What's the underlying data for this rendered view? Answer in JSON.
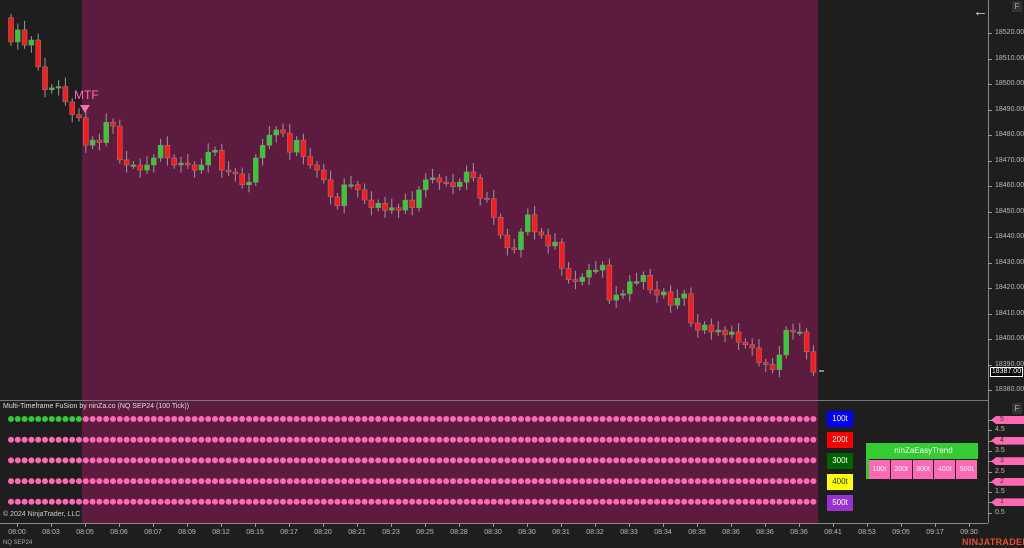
{
  "indicator_title": "Multi-Timeframe FuSion by ninZa.co (NQ SEP24 (100 Tick))",
  "copyright": "© 2024 NinjaTrader, LLC",
  "instrument": "NQ SEP24",
  "logo": "NINJATRADER",
  "mtf_label": "MTF",
  "last_price": "18387.00",
  "colors": {
    "up": "#33cc33",
    "down": "#ff1a1a",
    "signal_bg": "#5e1b40",
    "dot_pink": "#ff69b4",
    "dot_green": "#33cc33"
  },
  "price_axis": [
    "18520.00",
    "18510.00",
    "18500.00",
    "18490.00",
    "18480.00",
    "18470.00",
    "18460.00",
    "18450.00",
    "18440.00",
    "18430.00",
    "18420.00",
    "18410.00",
    "18400.00",
    "18390.00",
    "18380.00"
  ],
  "indicator_axis": [
    "5",
    "4.5",
    "4",
    "3.5",
    "3",
    "2.5",
    "2",
    "1.5",
    "1",
    "0.5"
  ],
  "time_axis": [
    "08:00",
    "08:03",
    "08:05",
    "08:06",
    "08:07",
    "08:09",
    "08:12",
    "08:15",
    "08:17",
    "08:20",
    "08:21",
    "08:23",
    "08:25",
    "08:28",
    "08:30",
    "08:30",
    "08:31",
    "08:32",
    "08:33",
    "08:34",
    "08:35",
    "08:36",
    "08:36",
    "08:36",
    "08:41",
    "08:53",
    "09:05",
    "09:17",
    "09:30"
  ],
  "timeframes": [
    {
      "label": "100t",
      "bg": "#0000ff",
      "fg": "#ffffff"
    },
    {
      "label": "200t",
      "bg": "#ff0000",
      "fg": "#ffffff"
    },
    {
      "label": "300t",
      "bg": "#006400",
      "fg": "#ffffff"
    },
    {
      "label": "400t",
      "bg": "#ffff00",
      "fg": "#333333"
    },
    {
      "label": "500t",
      "bg": "#9932cc",
      "fg": "#ffffff"
    }
  ],
  "easy_trend": {
    "title": "ninZaEasyTrend",
    "cells": [
      "100t",
      "200t",
      "300t",
      "400t",
      "500t"
    ]
  },
  "dot_rows": {
    "green_count_row1": 11,
    "count": 119
  },
  "chart_data": {
    "type": "candlestick",
    "ylim": [
      18376,
      18534
    ],
    "open_first": 18526,
    "closes": [
      18516.5,
      18521.25,
      18515.25,
      18517.25,
      18506.75,
      18497.75,
      18498.5,
      18499,
      18493,
      18488,
      18486.75,
      18476,
      18478,
      18477,
      18485,
      18483.5,
      18470.25,
      18468.25,
      18468.25,
      18466.25,
      18468.25,
      18471,
      18476,
      18471,
      18468.25,
      18469,
      18468.25,
      18466.25,
      18468.25,
      18473.25,
      18474,
      18466.25,
      18465.5,
      18464.75,
      18460.5,
      18461.5,
      18471,
      18476,
      18480,
      18482,
      18480.75,
      18473.25,
      18478,
      18471.5,
      18468.25,
      18466.25,
      18462.5,
      18455.75,
      18452.25,
      18460.5,
      18460.5,
      18458.5,
      18454.5,
      18451.5,
      18453.25,
      18450.5,
      18451.5,
      18450.5,
      18454.5,
      18451.5,
      18458.5,
      18462.5,
      18463.25,
      18461.5,
      18461.25,
      18459.75,
      18461.5,
      18465.5,
      18463.25,
      18455.25,
      18455,
      18447.75,
      18440.75,
      18435.75,
      18435,
      18442,
      18448.75,
      18442,
      18440.75,
      18436.5,
      18438,
      18427.75,
      18423.25,
      18422.5,
      18424.25,
      18427,
      18427,
      18429,
      18415.25,
      18417.25,
      18417.75,
      18422.5,
      18422.5,
      18425,
      18419.25,
      18417.25,
      18418.5,
      18413.25,
      18416,
      18417.75,
      18406.25,
      18403.5,
      18405.5,
      18402.75,
      18403.5,
      18401.75,
      18402.75,
      18398.75,
      18397.75,
      18396.5,
      18390.75,
      18390,
      18388,
      18393.75,
      18403.5,
      18402.75,
      18402.75,
      18395,
      18387
    ]
  }
}
